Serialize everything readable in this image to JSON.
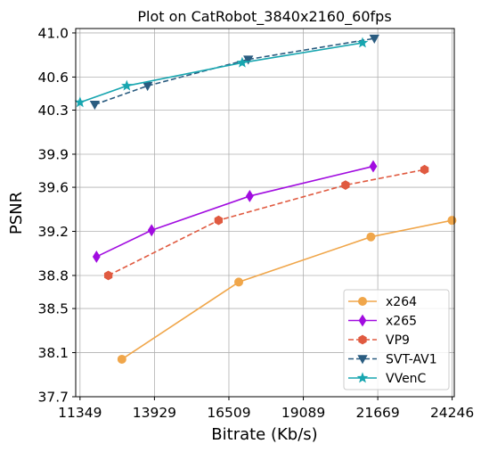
{
  "chart_data": {
    "type": "line",
    "title": "Plot on CatRobot_3840x2160_60fps",
    "xlabel": "Bitrate (Kb/s)",
    "ylabel": "PSNR",
    "xlim": [
      11200,
      24320
    ],
    "ylim": [
      37.7,
      41.04
    ],
    "x_ticks": [
      11349,
      13929,
      16509,
      19089,
      21669,
      24246
    ],
    "x_tick_labels": [
      "11349",
      "13929",
      "16509",
      "19089",
      "21669",
      "24246"
    ],
    "y_ticks": [
      37.7,
      38.1,
      38.5,
      38.8,
      39.2,
      39.6,
      39.9,
      40.3,
      40.6,
      41.0
    ],
    "y_tick_labels": [
      "37.7",
      "38.1",
      "38.5",
      "38.8",
      "39.2",
      "39.6",
      "39.9",
      "40.3",
      "40.6",
      "41.0"
    ],
    "grid": true,
    "legend_position": "lower-right",
    "series": [
      {
        "name": "x264",
        "color": "#f0a64a",
        "marker": "circle",
        "dash": "solid",
        "x": [
          12800,
          16850,
          21430,
          24240
        ],
        "y": [
          38.04,
          38.74,
          39.15,
          39.3
        ]
      },
      {
        "name": "x265",
        "color": "#a10ce0",
        "marker": "diamond",
        "dash": "solid",
        "x": [
          11920,
          13830,
          17230,
          21510
        ],
        "y": [
          38.97,
          39.21,
          39.52,
          39.79
        ]
      },
      {
        "name": "VP9",
        "color": "#e05a40",
        "marker": "hexagon",
        "dash": "dashed",
        "x": [
          12330,
          16150,
          20550,
          23290
        ],
        "y": [
          38.8,
          39.3,
          39.62,
          39.76
        ]
      },
      {
        "name": "SVT-AV1",
        "color": "#2a5c80",
        "marker": "triangle-down",
        "dash": "dashed",
        "x": [
          11860,
          13690,
          17180,
          21550
        ],
        "y": [
          40.35,
          40.52,
          40.76,
          40.95
        ]
      },
      {
        "name": "VVenC",
        "color": "#18a6b0",
        "marker": "star",
        "dash": "solid",
        "x": [
          11350,
          12970,
          16970,
          21140
        ],
        "y": [
          40.37,
          40.52,
          40.73,
          40.91
        ]
      }
    ]
  }
}
